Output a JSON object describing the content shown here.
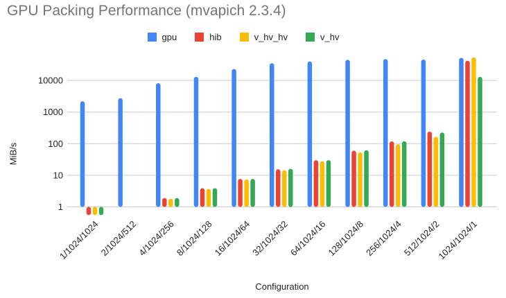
{
  "header": {
    "title": "GPU Packing Performance (mvapich 2.3.4)",
    "title_color": "#757575"
  },
  "chart_data": {
    "type": "bar",
    "title": "GPU Packing Performance (mvapich 2.3.4)",
    "xlabel": "Configuration",
    "ylabel": "MiB/s",
    "y_scale": "log",
    "y_baseline": 1,
    "y_ticks": [
      1,
      10,
      100,
      1000,
      10000
    ],
    "ylim": [
      0.5,
      68000
    ],
    "grid": true,
    "gridline_color": "#cccccc",
    "legend_position": "top",
    "categories": [
      "1/1024/1024",
      "2/1024/512",
      "4/1024/256",
      "8/1024/128",
      "16/1024/64",
      "32/1024/32",
      "64/1024/16",
      "128/1024/8",
      "256/1024/4",
      "512/1024/2",
      "1024/1024/1"
    ],
    "series": [
      {
        "name": "gpu",
        "color": "#4285F4",
        "values": [
          2200,
          2750,
          8200,
          13000,
          23000,
          35000,
          40000,
          45000,
          47500,
          46000,
          52000
        ]
      },
      {
        "name": "hib",
        "color": "#EA4335",
        "values": [
          0.55,
          1,
          1.9,
          3.9,
          7.7,
          15.5,
          30,
          60,
          118,
          240,
          42000
        ]
      },
      {
        "name": "v_hv_hv",
        "color": "#FBBC04",
        "values": [
          0.55,
          1,
          1.8,
          3.7,
          7.4,
          14.5,
          28,
          53,
          96,
          165,
          53500
        ]
      },
      {
        "name": "v_hv",
        "color": "#34A853",
        "values": [
          0.55,
          1,
          1.9,
          3.9,
          7.7,
          16,
          30,
          62,
          120,
          225,
          13000
        ]
      }
    ]
  }
}
